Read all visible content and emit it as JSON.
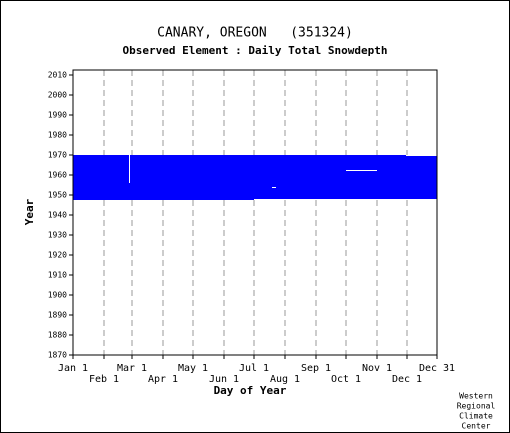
{
  "chart_data": {
    "type": "availability",
    "title": "CANARY, OREGON   (351324)",
    "subtitle": "Observed Element : Daily Total Snowdepth",
    "xlabel": "Day of Year",
    "ylabel": "Year",
    "xlim": [
      1,
      365
    ],
    "xticks": [
      {
        "value": 1,
        "label": "Jan 1"
      },
      {
        "value": 32,
        "label": "Feb 1"
      },
      {
        "value": 60,
        "label": "Mar 1"
      },
      {
        "value": 91,
        "label": "Apr 1"
      },
      {
        "value": 121,
        "label": "May 1"
      },
      {
        "value": 152,
        "label": "Jun 1"
      },
      {
        "value": 182,
        "label": "Jul 1"
      },
      {
        "value": 213,
        "label": "Aug 1"
      },
      {
        "value": 244,
        "label": "Sep 1"
      },
      {
        "value": 274,
        "label": "Oct 1"
      },
      {
        "value": 305,
        "label": "Nov 1"
      },
      {
        "value": 335,
        "label": "Dec 1"
      },
      {
        "value": 365,
        "label": "Dec 31"
      }
    ],
    "ylim": [
      1870,
      2012.5
    ],
    "yticks": [
      1870,
      1880,
      1890,
      1900,
      1910,
      1920,
      1930,
      1940,
      1950,
      1960,
      1970,
      1980,
      1990,
      2000,
      2010
    ],
    "grid": true,
    "color": "#0000ff",
    "gap_color": "#ffffff",
    "blocks": [
      {
        "days": [
          1,
          365
        ],
        "years": [
          1947.5,
          1970
        ]
      }
    ],
    "gaps": [
      {
        "days": [
          274,
          305
        ],
        "years": [
          1962,
          1962.5
        ]
      },
      {
        "days": [
          200,
          204
        ],
        "years": [
          1953.5,
          1954
        ]
      },
      {
        "days": [
          57,
          58
        ],
        "years": [
          1956,
          1970
        ]
      },
      {
        "days": [
          334,
          365
        ],
        "years": [
          1969.5,
          1970
        ]
      },
      {
        "days": [
          182,
          365
        ],
        "years": [
          1947.5,
          1948
        ]
      }
    ],
    "credit": [
      "Western",
      "Regional",
      "Climate",
      "Center"
    ]
  }
}
